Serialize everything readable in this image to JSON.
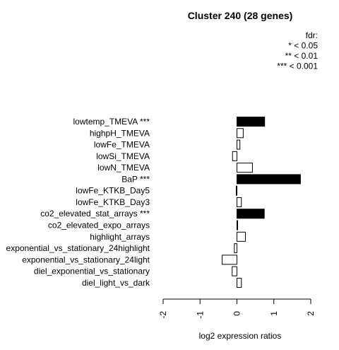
{
  "chart_data": {
    "type": "bar",
    "orientation": "horizontal",
    "title": "Cluster 240 (28 genes)",
    "xlabel": "log2 expression ratios",
    "ylabel": "",
    "xlim": [
      -2,
      2
    ],
    "xticks": [
      "-2",
      "-1",
      "0",
      "1",
      "2"
    ],
    "legend": {
      "position": "top-right",
      "lines": [
        "fdr:",
        "* < 0.05",
        "** < 0.01",
        "*** < 0.001"
      ]
    },
    "categories": [
      "lowtemp_TMEVA ***",
      "highpH_TMEVA",
      "lowFe_TMEVA",
      "lowSi_TMEVA",
      "lowN_TMEVA",
      "BaP ***",
      "lowFe_KTKB_Day5",
      "lowFe_KTKB_Day3",
      "co2_elevated_stat_arrays ***",
      "co2_elevated_expo_arrays",
      "highlight_arrays",
      "exponential_vs_stationary_24highlight",
      "exponential_vs_stationary_24light",
      "diel_exponential_vs_stationary",
      "diel_light_vs_dark"
    ],
    "values": [
      0.75,
      0.17,
      0.08,
      -0.12,
      0.42,
      1.72,
      -0.02,
      0.12,
      0.74,
      0.01,
      0.23,
      -0.07,
      -0.4,
      -0.13,
      0.12
    ],
    "significant": [
      true,
      false,
      false,
      false,
      false,
      true,
      false,
      false,
      true,
      false,
      false,
      false,
      false,
      false,
      false
    ],
    "colors": {
      "significant": "#000000",
      "normal": "#ffffff",
      "stroke": "#000000"
    }
  }
}
